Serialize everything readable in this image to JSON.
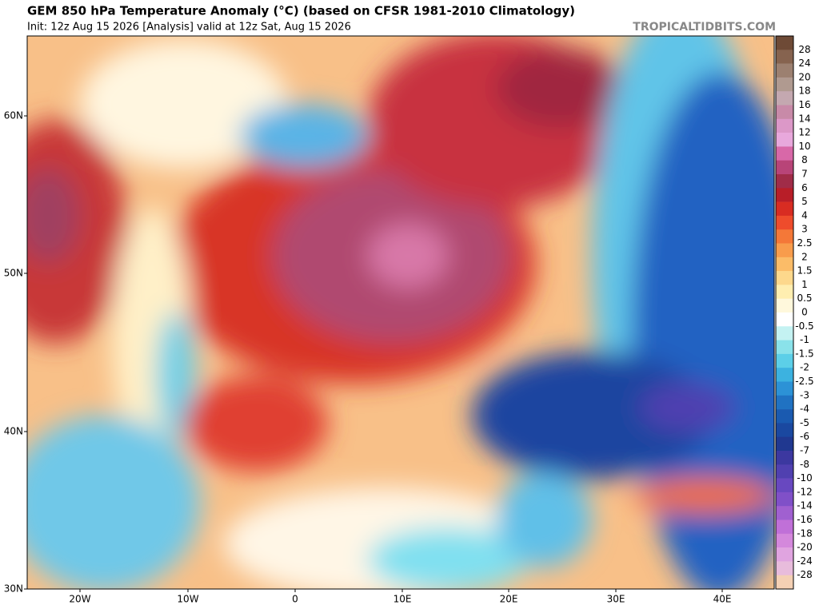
{
  "header": {
    "title": "GEM 850 hPa Temperature Anomaly (°C) (based on CFSR 1981-2010 Climatology)",
    "subtitle": "Init: 12z Aug 15 2026   [Analysis]   valid at 12z Sat, Aug 15 2026",
    "watermark": "TROPICALTIDBITS.COM"
  },
  "map": {
    "lat_labels": [
      "60N",
      "50N",
      "40N",
      "30N"
    ],
    "lon_labels": [
      "20W",
      "10W",
      "0",
      "10E",
      "20E",
      "30E",
      "40E"
    ]
  },
  "colorbar": {
    "levels": [
      28,
      24,
      20,
      18,
      16,
      14,
      12,
      10,
      8,
      7,
      6,
      5,
      4,
      3,
      2.5,
      2,
      1.5,
      1,
      0.5,
      0,
      -0.5,
      -1,
      -1.5,
      -2,
      -2.5,
      -3,
      -4,
      -5,
      -6,
      -7,
      -8,
      -10,
      -12,
      -14,
      -16,
      -18,
      -20,
      -24,
      -28
    ],
    "colors": [
      "#6e4a36",
      "#86634f",
      "#9c8070",
      "#b09a90",
      "#c4a8b0",
      "#c88aa8",
      "#dc98c8",
      "#e8a8dc",
      "#d868a8",
      "#b84478",
      "#a02c48",
      "#b81e28",
      "#d82c22",
      "#ee4c2c",
      "#f47838",
      "#f89c4c",
      "#fbbc68",
      "#fdd88c",
      "#ffeeb0",
      "#fff8dc",
      "#ffffff",
      "#c4f2f2",
      "#8ae2ea",
      "#5ccfe8",
      "#3cb2e0",
      "#2c92d6",
      "#2072c2",
      "#1a5ab0",
      "#1a48a0",
      "#203890",
      "#3c38a0",
      "#5040b0",
      "#6848c0",
      "#8050c8",
      "#a060d0",
      "#c070d8",
      "#d488dc",
      "#e0a4e0",
      "#e8bcdc",
      "#f4d0b4"
    ]
  }
}
